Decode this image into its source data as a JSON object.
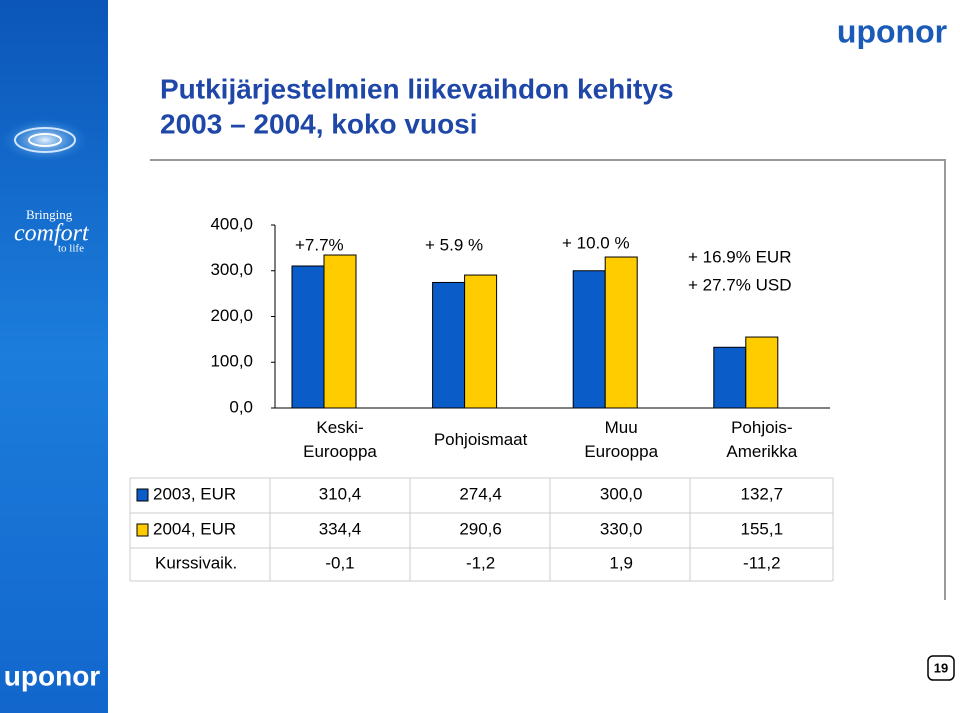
{
  "brand": {
    "logo": "uponor",
    "tagline_1": "Bringing",
    "tagline_2": "comfort",
    "tagline_3": "to life",
    "page_number": "19"
  },
  "chart_data": {
    "type": "bar",
    "title": "Putkijärjestelmien liikevaihdon kehitys",
    "subtitle": "2003 – 2004, koko vuosi",
    "categories": [
      "Keski-\nEurooppa",
      "Pohjoismaat",
      "Muu\nEurooppa",
      "Pohjois-\nAmerikka"
    ],
    "series": [
      {
        "name": "2003, EUR",
        "color": "#0a5cc8",
        "values": [
          310.4,
          274.4,
          300.0,
          132.7
        ],
        "value_labels": [
          "310,4",
          "274,4",
          "300,0",
          "132,7"
        ]
      },
      {
        "name": "2004, EUR",
        "color": "#ffcc00",
        "values": [
          334.4,
          290.6,
          330.0,
          155.1
        ],
        "value_labels": [
          "334,4",
          "290,6",
          "330,0",
          "155,1"
        ]
      }
    ],
    "ylim": [
      0,
      400
    ],
    "yticks": [
      {
        "value": 0,
        "label": "0,0"
      },
      {
        "value": 100,
        "label": "100,0"
      },
      {
        "value": 200,
        "label": "200,0"
      },
      {
        "value": 300,
        "label": "300,0"
      },
      {
        "value": 400,
        "label": "400,0"
      }
    ],
    "annotations": [
      "+7.7%",
      "+ 5.9 %",
      "+ 10.0 %",
      "+ 16.9% EUR",
      "+ 27.7% USD"
    ],
    "table_rows": [
      {
        "label": "Kurssivaik.",
        "cells": [
          "-0,1",
          "-1,2",
          "1,9",
          "-11,2"
        ]
      }
    ]
  }
}
